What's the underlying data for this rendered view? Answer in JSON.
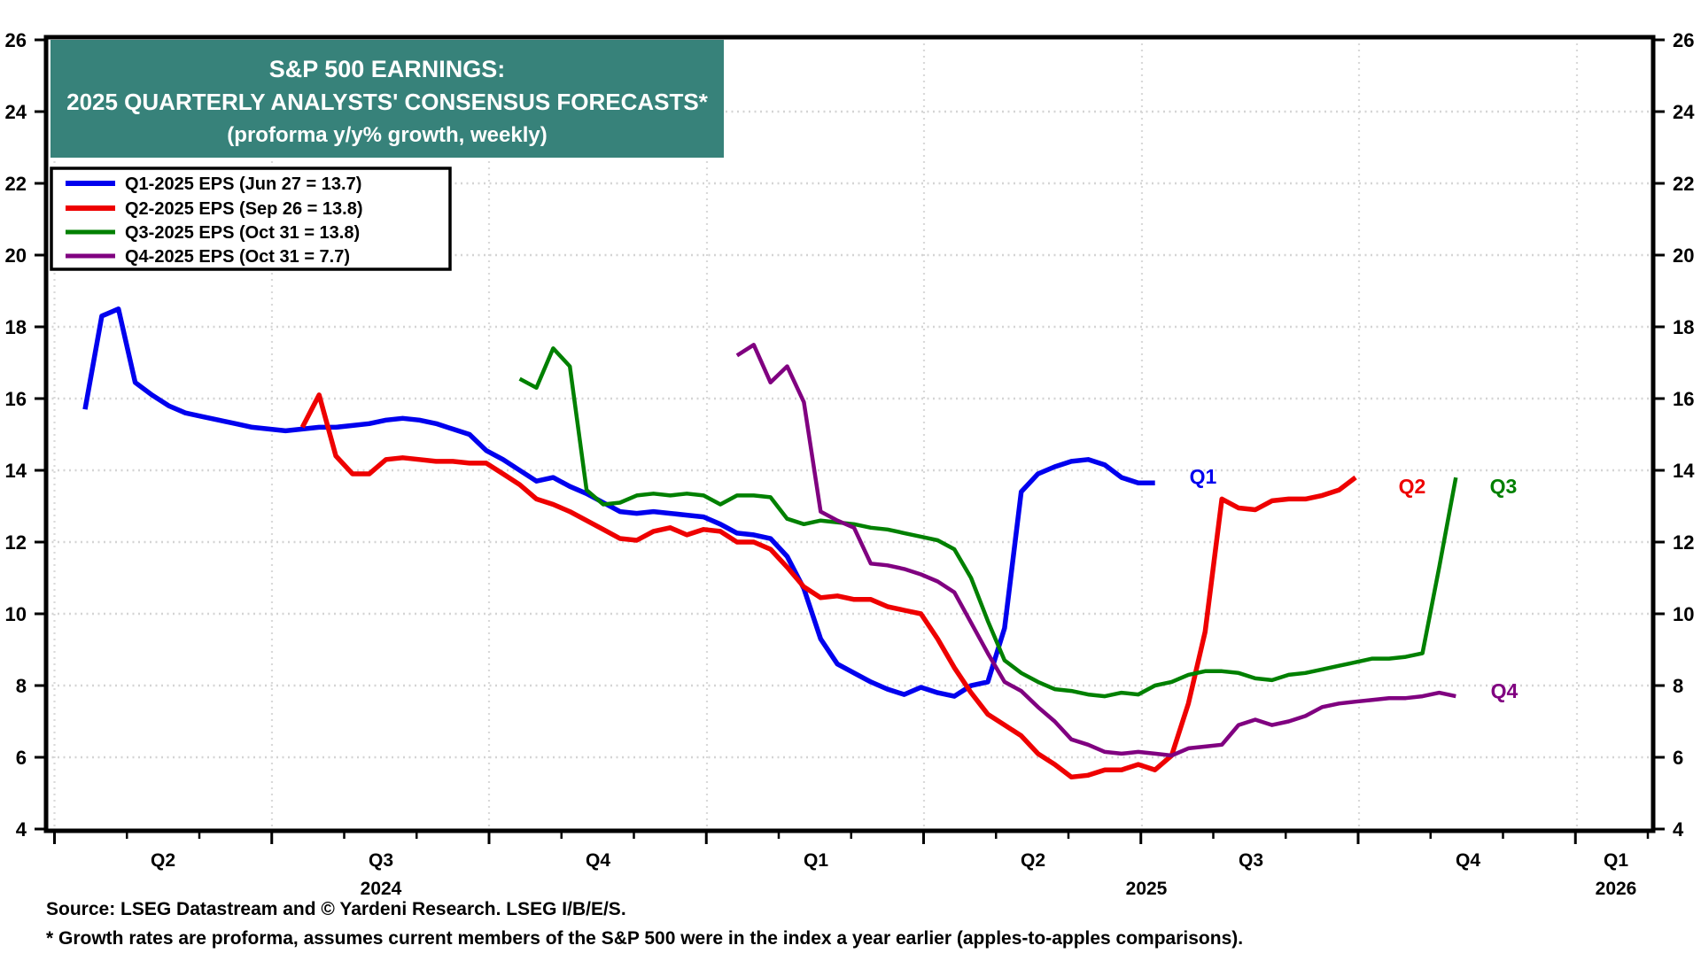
{
  "title": {
    "line1": "S&P 500 EARNINGS:",
    "line2": "2025 QUARTERLY ANALYSTS' CONSENSUS FORECASTS*",
    "line3": "(proforma y/y% growth, weekly)",
    "bg_color": "#37827A",
    "text_color": "#FFFFFF"
  },
  "source_line": "Source: LSEG Datastream and © Yardeni Research. LSEG I/B/E/S.",
  "footnote": "* Growth rates are proforma, assumes current members of the S&P 500 were in the index a year earlier (apples-to-apples comparisons).",
  "chart_data": {
    "type": "line",
    "title": "S&P 500 EARNINGS: 2025 QUARTERLY ANALYSTS' CONSENSUS FORECASTS* (proforma y/y% growth, weekly)",
    "grid": true,
    "legend_position": "top-left",
    "y_axis": {
      "min": 4,
      "max": 26,
      "step": 2,
      "ticks": [
        4,
        6,
        8,
        10,
        12,
        14,
        16,
        18,
        20,
        22,
        24,
        26
      ],
      "mirrored_right": true
    },
    "x_axis": {
      "unit": "weekly observations, mid-Apr 2024 through early Nov 2025",
      "quarter_labels": [
        "Q2",
        "Q3",
        "Q4",
        "Q1",
        "Q2",
        "Q3",
        "Q4",
        "Q1"
      ],
      "year_labels": [
        "2024",
        "2025",
        "2026"
      ]
    },
    "series": [
      {
        "name": "Q1-2025 EPS (Jun 27 = 13.7)",
        "end_label": "Q1",
        "color": "#0000EE",
        "line_width": 5.5,
        "start_week": 0,
        "values": [
          15.7,
          18.3,
          18.5,
          16.45,
          16.1,
          15.8,
          15.6,
          15.5,
          15.4,
          15.3,
          15.2,
          15.15,
          15.1,
          15.15,
          15.2,
          15.2,
          15.25,
          15.3,
          15.4,
          15.45,
          15.4,
          15.3,
          15.15,
          15.0,
          14.55,
          14.3,
          14.0,
          13.7,
          13.8,
          13.55,
          13.35,
          13.1,
          12.85,
          12.8,
          12.85,
          12.8,
          12.75,
          12.7,
          12.5,
          12.25,
          12.2,
          12.1,
          11.6,
          10.7,
          9.3,
          8.6,
          8.35,
          8.1,
          7.9,
          7.75,
          7.95,
          7.8,
          7.7,
          8.0,
          8.1,
          9.6,
          13.4,
          13.9,
          14.1,
          14.25,
          14.3,
          14.15,
          13.8,
          13.65,
          13.65
        ]
      },
      {
        "name": "Q2-2025 EPS (Sep 26 = 13.8)",
        "end_label": "Q2",
        "color": "#EE0000",
        "line_width": 5.5,
        "start_week": 13,
        "values": [
          15.2,
          16.1,
          14.4,
          13.9,
          13.9,
          14.3,
          14.35,
          14.3,
          14.25,
          14.25,
          14.2,
          14.2,
          13.9,
          13.6,
          13.2,
          13.05,
          12.85,
          12.6,
          12.35,
          12.1,
          12.05,
          12.3,
          12.4,
          12.2,
          12.35,
          12.3,
          12.0,
          12.0,
          11.8,
          11.3,
          10.75,
          10.45,
          10.5,
          10.4,
          10.4,
          10.2,
          10.1,
          10.0,
          9.3,
          8.5,
          7.8,
          7.2,
          6.9,
          6.6,
          6.1,
          5.8,
          5.45,
          5.5,
          5.65,
          5.65,
          5.8,
          5.65,
          6.05,
          7.5,
          9.5,
          13.2,
          12.95,
          12.9,
          13.15,
          13.2,
          13.2,
          13.3,
          13.45,
          13.8
        ]
      },
      {
        "name": "Q3-2025 EPS (Oct 31 = 13.8)",
        "end_label": "Q3",
        "color": "#008000",
        "line_width": 4.5,
        "start_week": 26,
        "values": [
          16.55,
          16.3,
          17.4,
          16.9,
          13.45,
          13.05,
          13.1,
          13.3,
          13.35,
          13.3,
          13.35,
          13.3,
          13.05,
          13.3,
          13.3,
          13.25,
          12.65,
          12.5,
          12.6,
          12.55,
          12.5,
          12.4,
          12.35,
          12.25,
          12.15,
          12.05,
          11.8,
          11.0,
          9.8,
          8.7,
          8.35,
          8.1,
          7.9,
          7.85,
          7.75,
          7.7,
          7.8,
          7.75,
          8.0,
          8.1,
          8.3,
          8.4,
          8.4,
          8.35,
          8.2,
          8.15,
          8.3,
          8.35,
          8.45,
          8.55,
          8.65,
          8.75,
          8.75,
          8.8,
          8.9,
          11.3,
          13.8
        ]
      },
      {
        "name": "Q4-2025 EPS (Oct 31 = 7.7)",
        "end_label": "Q4",
        "color": "#800080",
        "line_width": 4.5,
        "start_week": 39,
        "values": [
          17.2,
          17.5,
          16.45,
          16.9,
          15.9,
          12.85,
          12.6,
          12.4,
          11.4,
          11.35,
          11.25,
          11.1,
          10.9,
          10.6,
          9.75,
          8.9,
          8.1,
          7.85,
          7.4,
          7.0,
          6.5,
          6.35,
          6.15,
          6.1,
          6.15,
          6.1,
          6.05,
          6.25,
          6.3,
          6.35,
          6.9,
          7.05,
          6.9,
          7.0,
          7.15,
          7.4,
          7.5,
          7.55,
          7.6,
          7.65,
          7.65,
          7.7,
          7.8,
          7.7
        ]
      }
    ]
  }
}
